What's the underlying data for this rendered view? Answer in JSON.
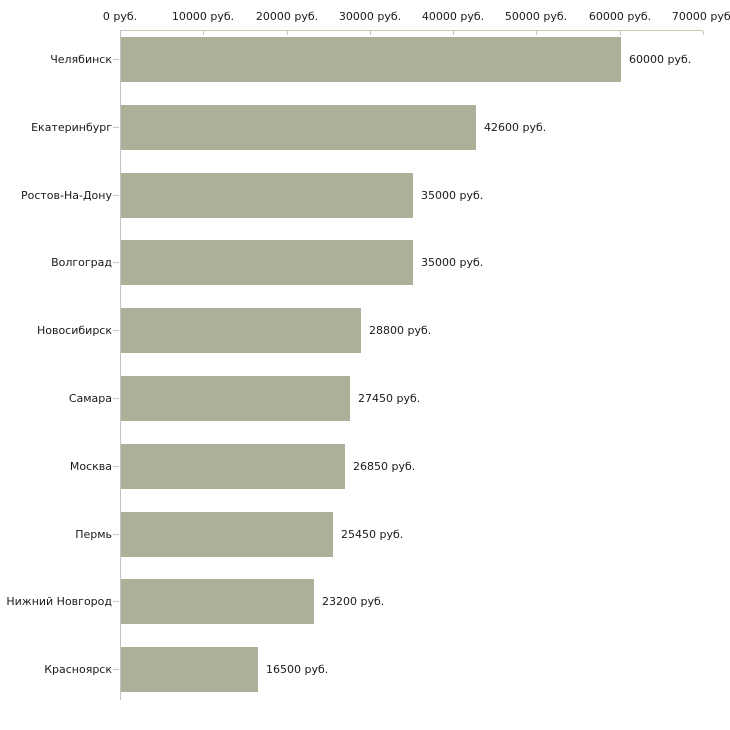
{
  "chart_data": {
    "type": "bar",
    "orientation": "horizontal",
    "title": "",
    "xlabel": "",
    "ylabel": "",
    "unit": "руб.",
    "grid": false,
    "legend": null,
    "xlim": [
      0,
      70000
    ],
    "categories": [
      "Челябинск",
      "Екатеринбург",
      "Ростов-На-Дону",
      "Волгоград",
      "Новосибирск",
      "Самара",
      "Москва",
      "Пермь",
      "Нижний Новгород",
      "Красноярск"
    ],
    "values": [
      60000,
      42600,
      35000,
      35000,
      28800,
      27450,
      26850,
      25450,
      23200,
      16500
    ],
    "value_labels": [
      "60000 руб.",
      "42600 руб.",
      "35000 руб.",
      "35000 руб.",
      "28800 руб.",
      "27450 руб.",
      "26850 руб.",
      "25450 руб.",
      "23200 руб.",
      "16500 руб."
    ],
    "x_ticks": [
      {
        "value": 0,
        "label": "0 руб."
      },
      {
        "value": 10000,
        "label": "10000 руб."
      },
      {
        "value": 20000,
        "label": "20000 руб."
      },
      {
        "value": 30000,
        "label": "30000 руб."
      },
      {
        "value": 40000,
        "label": "40000 руб."
      },
      {
        "value": 50000,
        "label": "50000 руб."
      },
      {
        "value": 60000,
        "label": "60000 руб."
      },
      {
        "value": 70000,
        "label": "70000 руб."
      }
    ],
    "colors": {
      "bar": "#abb199",
      "axis_line": "#c6cab6",
      "axis_line_vertical": "#c2c2c2",
      "text": "#1a1a1a",
      "background": "#ffffff"
    }
  }
}
